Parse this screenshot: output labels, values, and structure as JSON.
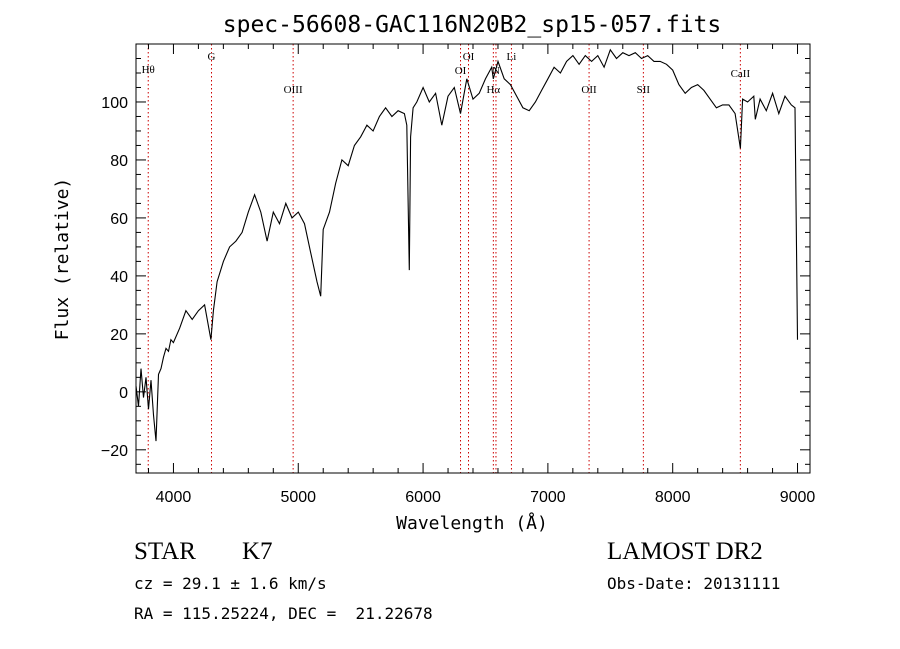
{
  "chart_data": {
    "type": "line",
    "title": "spec-56608-GAC116N20B2_sp15-057.fits",
    "xlabel": "Wavelength (Å)",
    "ylabel": "Flux (relative)",
    "xlim": [
      3700,
      9100
    ],
    "ylim": [
      -28,
      120
    ],
    "x_ticks": [
      4000,
      5000,
      6000,
      7000,
      8000,
      9000
    ],
    "y_ticks": [
      -20,
      0,
      20,
      40,
      60,
      80,
      100
    ],
    "grid": false,
    "line_color": "#000000",
    "marker_color": "#cc0000",
    "series": [
      {
        "x": [
          3700,
          3720,
          3740,
          3760,
          3780,
          3800,
          3820,
          3840,
          3860,
          3880,
          3900,
          3920,
          3940,
          3960,
          3980,
          4000,
          4050,
          4100,
          4150,
          4200,
          4250,
          4300,
          4320,
          4350,
          4400,
          4450,
          4500,
          4550,
          4600,
          4650,
          4700,
          4750,
          4800,
          4850,
          4900,
          4950,
          5000,
          5050,
          5100,
          5150,
          5180,
          5200,
          5250,
          5300,
          5350,
          5400,
          5450,
          5500,
          5550,
          5600,
          5650,
          5700,
          5750,
          5800,
          5850,
          5870,
          5890,
          5900,
          5920,
          5950,
          6000,
          6050,
          6100,
          6150,
          6200,
          6250,
          6300,
          6350,
          6400,
          6450,
          6500,
          6550,
          6563,
          6600,
          6650,
          6700,
          6750,
          6800,
          6850,
          6900,
          6950,
          7000,
          7050,
          7100,
          7150,
          7200,
          7250,
          7300,
          7350,
          7400,
          7450,
          7500,
          7550,
          7600,
          7650,
          7700,
          7750,
          7800,
          7850,
          7900,
          7950,
          8000,
          8050,
          8100,
          8150,
          8200,
          8250,
          8300,
          8350,
          8400,
          8450,
          8500,
          8542,
          8560,
          8600,
          8650,
          8662,
          8700,
          8750,
          8800,
          8850,
          8900,
          8950,
          8980,
          9000
        ],
        "y": [
          2,
          -5,
          8,
          -2,
          5,
          -6,
          4,
          -8,
          -17,
          6,
          8,
          12,
          15,
          14,
          18,
          17,
          22,
          28,
          25,
          28,
          30,
          18,
          28,
          38,
          45,
          50,
          52,
          55,
          62,
          68,
          62,
          52,
          62,
          58,
          65,
          60,
          62,
          58,
          48,
          38,
          33,
          56,
          62,
          72,
          80,
          78,
          85,
          88,
          92,
          90,
          95,
          98,
          95,
          97,
          96,
          92,
          42,
          88,
          98,
          100,
          105,
          100,
          103,
          92,
          102,
          105,
          96,
          108,
          101,
          103,
          108,
          112,
          108,
          114,
          108,
          106,
          102,
          98,
          97,
          100,
          104,
          108,
          112,
          110,
          114,
          116,
          113,
          116,
          114,
          116,
          112,
          118,
          115,
          117,
          116,
          117,
          115,
          116,
          114,
          114,
          113,
          111,
          106,
          103,
          105,
          106,
          104,
          101,
          98,
          99,
          99,
          96,
          84,
          101,
          100,
          102,
          94,
          101,
          97,
          103,
          96,
          102,
          99,
          98,
          18
        ]
      }
    ],
    "lines": [
      {
        "label": "Hθ",
        "x": 3798
      },
      {
        "label": "G",
        "x": 4305
      },
      {
        "label": "OIII",
        "x": 4959
      },
      {
        "label": "OI",
        "x": 6300
      },
      {
        "label": "OI",
        "x": 6364
      },
      {
        "label": "Hα",
        "x": 6563
      },
      {
        "label": "N",
        "x": 6584
      },
      {
        "label": "Li",
        "x": 6708
      },
      {
        "label": "OII",
        "x": 7330
      },
      {
        "label": "SII",
        "x": 7765
      },
      {
        "label": "CaII",
        "x": 8542
      }
    ]
  },
  "info": {
    "object": "STAR",
    "subclass": "K7",
    "cz": "cz = 29.1 ± 1.6 km/s",
    "coords": "RA = 115.25224, DEC =  21.22678",
    "survey": "LAMOST DR2",
    "obs_date": "Obs-Date: 20131111"
  }
}
